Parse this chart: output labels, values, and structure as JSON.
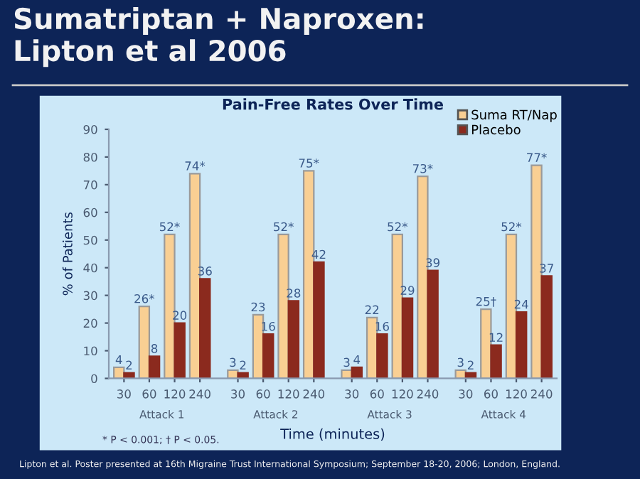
{
  "chart_data": {
    "type": "bar",
    "title": "Sumatriptan + Naproxen:\nLipton et al 2006",
    "subtitle": "Pain-Free Rates Over Time",
    "xlabel": "Time (minutes)",
    "ylabel": "% of Patients",
    "categories": [
      "30",
      "60",
      "120",
      "240",
      "30",
      "60",
      "120",
      "240",
      "30",
      "60",
      "120",
      "240",
      "30",
      "60",
      "120",
      "240"
    ],
    "series": [
      {
        "name": "Suma RT/Nap",
        "color": "#f9cf93",
        "values": [
          4,
          26,
          52,
          74,
          3,
          23,
          52,
          75,
          3,
          22,
          52,
          73,
          3,
          25,
          52,
          77
        ],
        "value_labels": [
          "4",
          "26*",
          "52*",
          "74*",
          "3",
          "23",
          "52*",
          "75*",
          "3",
          "22",
          "52*",
          "73*",
          "3",
          "25†",
          "52*",
          "77*"
        ]
      },
      {
        "name": "Placebo",
        "color": "#8b2a1e",
        "values": [
          2,
          8,
          20,
          36,
          2,
          16,
          28,
          42,
          4,
          16,
          29,
          39,
          2,
          12,
          24,
          37
        ],
        "value_labels": [
          "2",
          "8",
          "20",
          "36",
          "2",
          "16",
          "28",
          "42",
          "4",
          "16",
          "29",
          "39",
          "2",
          "12",
          "24",
          "37"
        ]
      }
    ],
    "ylim": [
      0,
      90
    ],
    "yticks": [
      0,
      10,
      20,
      30,
      40,
      50,
      60,
      70,
      80,
      90
    ],
    "grid": false,
    "legend": "top right",
    "annotations": [
      "Attack 1",
      "Attack 2",
      "Attack 3",
      "Attack 4",
      "* P < 0.001; † P < 0.05.",
      "Lipton et al. Poster presented at 16th Migraine Trust International Symposium; September 18-20, 2006; London, England."
    ]
  }
}
